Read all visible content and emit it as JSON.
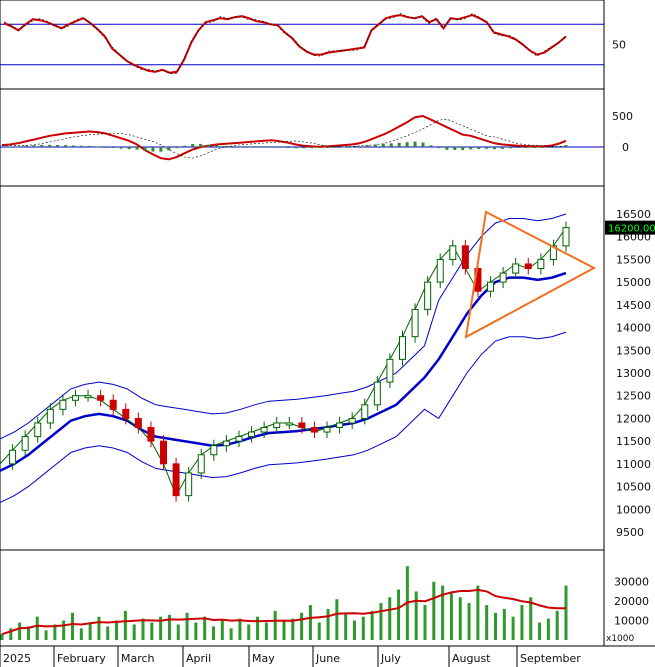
{
  "chart_data": [
    {
      "panel": "rsi",
      "type": "line",
      "yticks": [
        50
      ],
      "levels": [
        30,
        70
      ],
      "series": [
        {
          "values": [
            71,
            68,
            64,
            70,
            75,
            74,
            72,
            69,
            66,
            70,
            73,
            76,
            71,
            65,
            58,
            46,
            40,
            34,
            30,
            27,
            24,
            23,
            25,
            22,
            23,
            35,
            52,
            64,
            72,
            74,
            76,
            75,
            77,
            78,
            76,
            73,
            72,
            70,
            69,
            62,
            56,
            48,
            43,
            40,
            40,
            42,
            43,
            44,
            45,
            46,
            47,
            64,
            70,
            76,
            78,
            79,
            77,
            76,
            78,
            72,
            75,
            66,
            76,
            75,
            77,
            79,
            76,
            72,
            62,
            60,
            58,
            55,
            50,
            44,
            40,
            42,
            47,
            52,
            58
          ],
          "color": "#cc0000"
        }
      ]
    },
    {
      "panel": "macd",
      "type": "line",
      "yticks": [
        500,
        0
      ],
      "series": [
        {
          "values": [
            30,
            40,
            60,
            90,
            120,
            150,
            180,
            200,
            220,
            230,
            240,
            250,
            240,
            220,
            180,
            140,
            100,
            40,
            -50,
            -120,
            -180,
            -200,
            -160,
            -100,
            -40,
            0,
            20,
            40,
            50,
            60,
            70,
            80,
            90,
            100,
            110,
            90,
            70,
            40,
            20,
            10,
            5,
            10,
            20,
            30,
            40,
            60,
            100,
            150,
            200,
            260,
            330,
            400,
            480,
            500,
            440,
            380,
            320,
            260,
            200,
            180,
            140,
            100,
            60,
            40,
            30,
            20,
            15,
            10,
            10,
            20,
            50,
            100
          ],
          "color": "#cc0000"
        }
      ]
    },
    {
      "panel": "price",
      "type": "line",
      "yticks": [
        16500,
        16000,
        15500,
        15000,
        14500,
        14000,
        13500,
        13000,
        12500,
        12000,
        11500,
        11000,
        10500,
        10000,
        9500
      ],
      "last_price": "16200.00",
      "series": [
        {
          "values": [
            11000,
            11300,
            11600,
            11900,
            12200,
            12400,
            12500,
            12500,
            12400,
            12200,
            12000,
            11800,
            11500,
            11000,
            10300,
            10800,
            11200,
            11400,
            11500,
            11600,
            11700,
            11800,
            11900,
            11900,
            11800,
            11700,
            11800,
            11900,
            12000,
            12300,
            12800,
            13300,
            13800,
            14400,
            15000,
            15500,
            15800,
            15300,
            14800,
            15000,
            15200,
            15400,
            15300,
            15500,
            15800,
            16200
          ],
          "color": "#006400"
        },
        {
          "values": [
            10850,
            11000,
            11200,
            11450,
            11700,
            11950,
            12050,
            12100,
            12050,
            11950,
            11750,
            11600,
            11550,
            11500,
            11450,
            11400,
            11420,
            11500,
            11600,
            11680,
            11700,
            11720,
            11760,
            11800,
            11850,
            11900,
            12000,
            12150,
            12300,
            12600,
            12900,
            13300,
            13800,
            14300,
            14700,
            15000,
            15100,
            15100,
            15050,
            15100,
            15200
          ],
          "color": "#0000cc"
        }
      ]
    },
    {
      "panel": "volume",
      "type": "bar",
      "yticks": [
        30000,
        20000,
        10000
      ],
      "unit": "x1000",
      "values": [
        3000,
        6000,
        9000,
        7000,
        12000,
        5000,
        8000,
        10000,
        14000,
        6000,
        9000,
        12000,
        7000,
        10000,
        15000,
        8000,
        11000,
        9000,
        12000,
        13000,
        8000,
        14000,
        9000,
        12000,
        7000,
        10000,
        6000,
        11000,
        8000,
        12000,
        9000,
        15000,
        10000,
        11000,
        14000,
        18000,
        9000,
        16000,
        21000,
        14000,
        10000,
        12000,
        15000,
        19000,
        22000,
        26000,
        38000,
        25000,
        18000,
        30000,
        28000,
        24000,
        22000,
        19000,
        28000,
        18000,
        14000,
        16000,
        12000,
        18000,
        22000,
        9000,
        11000,
        15000,
        28000
      ]
    }
  ],
  "x_axis": {
    "months": [
      "2025",
      "February",
      "March",
      "April",
      "May",
      "June",
      "July",
      "August",
      "September"
    ]
  }
}
